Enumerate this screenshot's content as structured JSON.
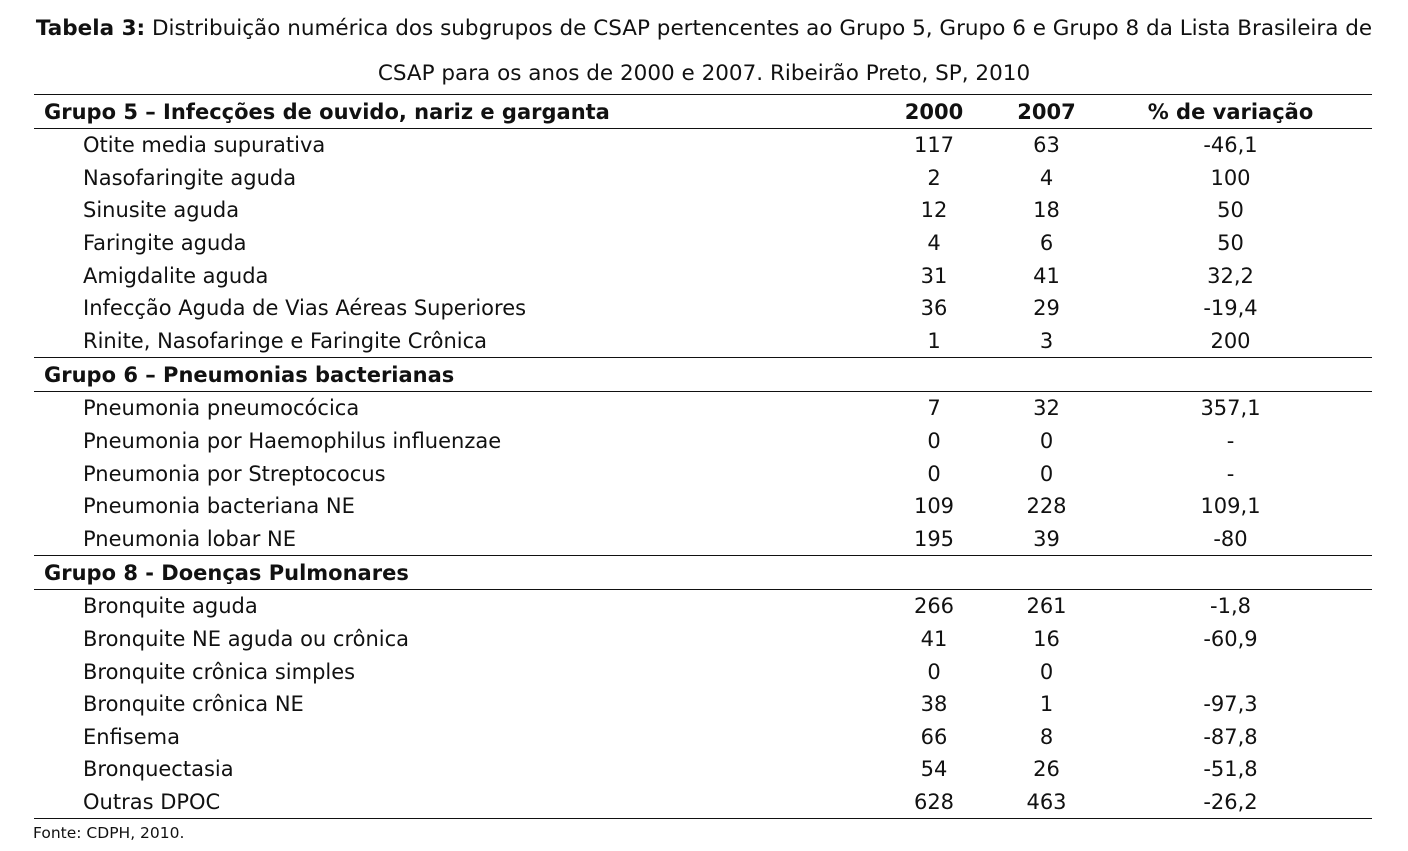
{
  "caption": {
    "label": "Tabela 3:",
    "text": "Distribuição numérica dos subgrupos de CSAP pertencentes ao Grupo 5, Grupo 6 e Grupo 8 da Lista Brasileira de CSAP para os anos de 2000 e 2007. Ribeirão Preto, SP, 2010"
  },
  "table": {
    "header": {
      "group": "Grupo 5 – Infecções de ouvido, nariz e garganta",
      "col_2000": "2000",
      "col_2007": "2007",
      "col_var": "% de variação"
    },
    "group5": {
      "rows": [
        {
          "name": "Otite media supurativa",
          "y2000": "117",
          "y2007": "63",
          "var": "-46,1"
        },
        {
          "name": "Nasofaringite aguda",
          "y2000": "2",
          "y2007": "4",
          "var": "100"
        },
        {
          "name": "Sinusite aguda",
          "y2000": "12",
          "y2007": "18",
          "var": "50"
        },
        {
          "name": "Faringite aguda",
          "y2000": "4",
          "y2007": "6",
          "var": "50"
        },
        {
          "name": "Amigdalite aguda",
          "y2000": "31",
          "y2007": "41",
          "var": "32,2"
        },
        {
          "name": "Infecção Aguda de Vias Aéreas Superiores",
          "y2000": "36",
          "y2007": "29",
          "var": "-19,4"
        },
        {
          "name": "Rinite, Nasofaringe e Faringite Crônica",
          "y2000": "1",
          "y2007": "3",
          "var": "200"
        }
      ]
    },
    "group6": {
      "title": "Grupo 6 – Pneumonias bacterianas",
      "rows": [
        {
          "name": "Pneumonia pneumocócica",
          "y2000": "7",
          "y2007": "32",
          "var": "357,1"
        },
        {
          "name": "Pneumonia por Haemophilus influenzae",
          "y2000": "0",
          "y2007": "0",
          "var": "-"
        },
        {
          "name": "Pneumonia por Streptococus",
          "y2000": "0",
          "y2007": "0",
          "var": "-"
        },
        {
          "name": "Pneumonia bacteriana NE",
          "y2000": "109",
          "y2007": "228",
          "var": "109,1"
        },
        {
          "name": "Pneumonia lobar NE",
          "y2000": "195",
          "y2007": "39",
          "var": "-80"
        }
      ]
    },
    "group8": {
      "title": "Grupo 8 - Doenças Pulmonares",
      "rows": [
        {
          "name": "Bronquite aguda",
          "y2000": "266",
          "y2007": "261",
          "var": "-1,8"
        },
        {
          "name": "Bronquite NE aguda ou crônica",
          "y2000": "41",
          "y2007": "16",
          "var": "-60,9"
        },
        {
          "name": "Bronquite crônica simples",
          "y2000": "0",
          "y2007": "0",
          "var": ""
        },
        {
          "name": "Bronquite crônica NE",
          "y2000": "38",
          "y2007": "1",
          "var": "-97,3"
        },
        {
          "name": "Enfisema",
          "y2000": "66",
          "y2007": "8",
          "var": "-87,8"
        },
        {
          "name": "Bronquectasia",
          "y2000": "54",
          "y2007": "26",
          "var": "-51,8"
        },
        {
          "name": "Outras DPOC",
          "y2000": "628",
          "y2007": "463",
          "var": "-26,2"
        }
      ]
    }
  },
  "source": "Fonte: CDPH, 2010."
}
